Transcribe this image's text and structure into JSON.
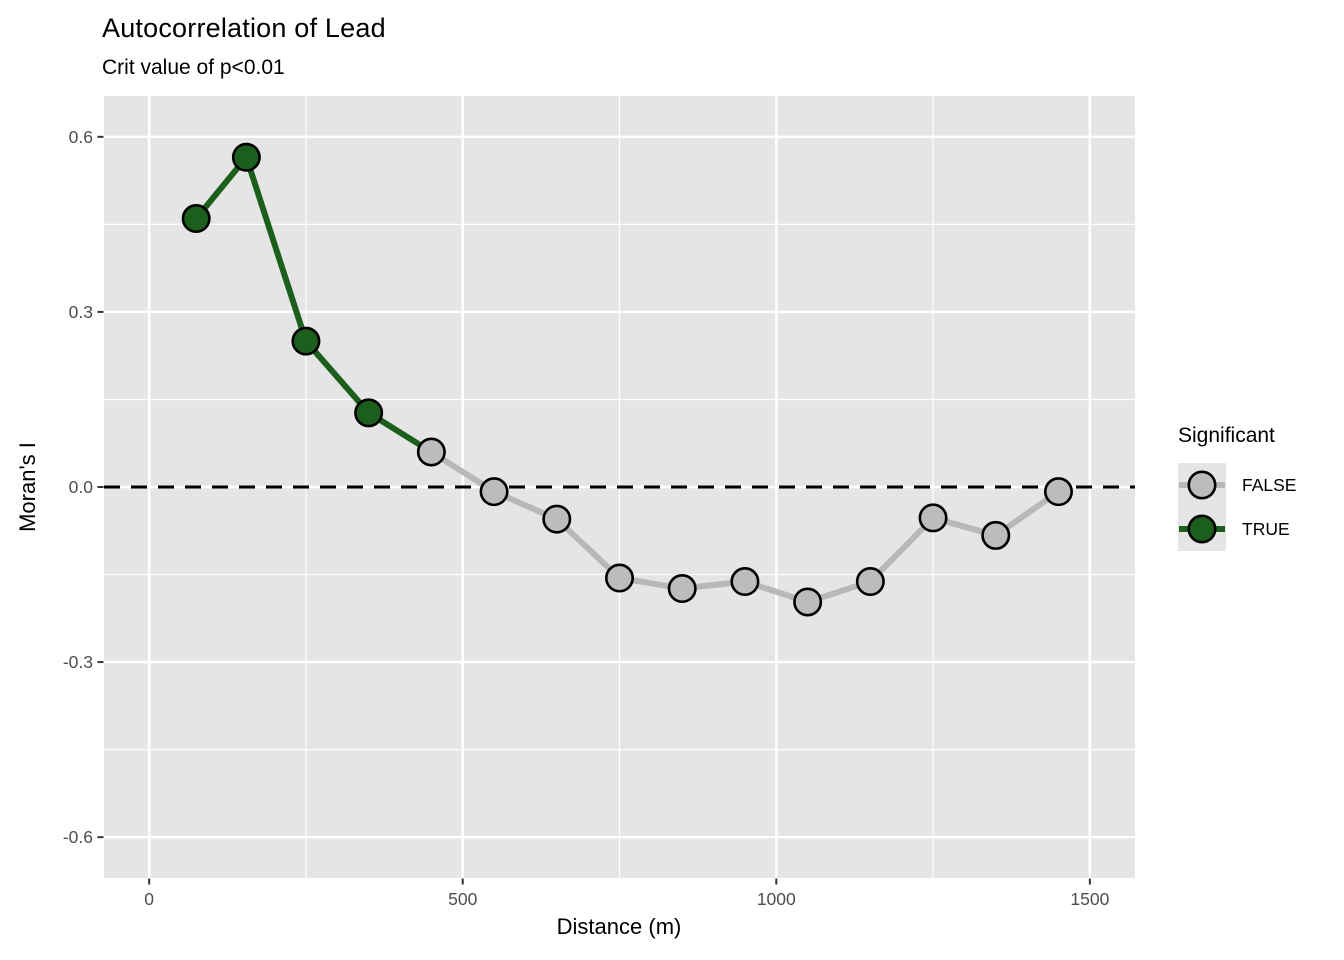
{
  "chart_data": {
    "type": "line",
    "title": "Autocorrelation of Lead",
    "subtitle": "Crit value of p<0.01",
    "xlabel": "Distance (m)",
    "ylabel": "Moran's I",
    "x": [
      75,
      155,
      250,
      350,
      450,
      550,
      650,
      750,
      850,
      950,
      1050,
      1150,
      1250,
      1350,
      1450
    ],
    "y": [
      0.46,
      0.565,
      0.25,
      0.127,
      0.06,
      -0.008,
      -0.055,
      -0.156,
      -0.174,
      -0.162,
      -0.197,
      -0.162,
      -0.053,
      -0.083,
      -0.008
    ],
    "significant": [
      true,
      true,
      true,
      true,
      false,
      false,
      false,
      false,
      false,
      false,
      false,
      false,
      false,
      false,
      false
    ],
    "zero_line": 0,
    "xlim": [
      -72,
      1572
    ],
    "ylim": [
      -0.67,
      0.67
    ],
    "x_tick_values": [
      0,
      500,
      1000,
      1500
    ],
    "x_tick_labels": [
      "0",
      "500",
      "1000",
      "1500"
    ],
    "x_minor_ticks": [
      250,
      750,
      1250
    ],
    "y_tick_values": [
      0.6,
      0.3,
      0,
      -0.3,
      -0.6
    ],
    "y_tick_labels": [
      "0.6",
      "0.3",
      "0.0",
      "-0.3",
      "-0.6"
    ],
    "y_minor_ticks": [
      0.45,
      0.15,
      -0.15,
      -0.45
    ],
    "grid": true,
    "legend": {
      "title": "Significant",
      "position": "right",
      "entries": [
        {
          "label": "FALSE",
          "value": false,
          "point_color": "#bcbcbc",
          "line_color": "#b8b8b8"
        },
        {
          "label": "TRUE",
          "value": true,
          "point_color": "#1c5f1c",
          "line_color": "#1c5f1c"
        }
      ]
    }
  },
  "colors": {
    "background": "#ffffff",
    "panel_background": "#e5e5e5",
    "grid": "#ffffff",
    "tick_mark": "#333333",
    "tick_label": "#4d4d4d",
    "text": "#000000",
    "zero_line": "#000000",
    "point_outline": "#000000",
    "true_color": "#1c5f1c",
    "false_point_color": "#bcbcbc",
    "false_line_color": "#b8b8b8"
  }
}
